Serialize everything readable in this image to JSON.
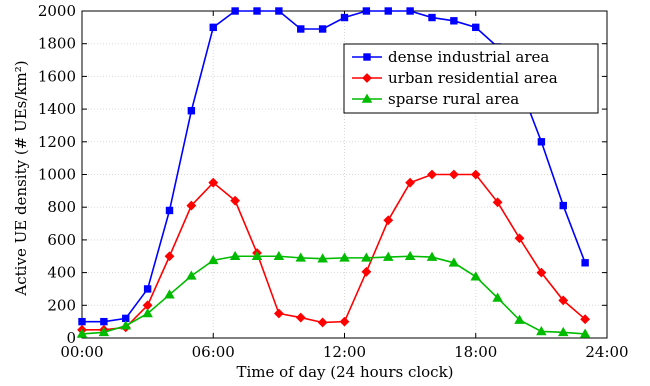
{
  "chart_data": {
    "type": "line",
    "xlabel": "Time of day (24 hours clock)",
    "ylabel": "Active UE density (# UEs/km²)",
    "xlim": [
      0,
      24
    ],
    "ylim": [
      0,
      2000
    ],
    "x_ticks": [
      0,
      6,
      12,
      18,
      24
    ],
    "x_tick_labels": [
      "00:00",
      "06:00",
      "12:00",
      "18:00",
      "24:00"
    ],
    "y_ticks": [
      0,
      200,
      400,
      600,
      800,
      1000,
      1200,
      1400,
      1600,
      1800,
      2000
    ],
    "y_tick_labels": [
      "0",
      "200",
      "400",
      "600",
      "800",
      "1000",
      "1200",
      "1400",
      "1600",
      "1800",
      "2000"
    ],
    "grid": true,
    "legend_position": "top-right",
    "x": [
      0,
      1,
      2,
      3,
      4,
      5,
      6,
      7,
      8,
      9,
      10,
      11,
      12,
      13,
      14,
      15,
      16,
      17,
      18,
      19,
      20,
      21,
      22,
      23
    ],
    "series": [
      {
        "name": "dense industrial area",
        "color": "#0000ff",
        "marker": "square",
        "values": [
          100,
          100,
          120,
          300,
          780,
          1390,
          1900,
          2000,
          2000,
          2000,
          1890,
          1890,
          1960,
          2000,
          2000,
          2000,
          1960,
          1940,
          1900,
          1780,
          1550,
          1200,
          810,
          460
        ]
      },
      {
        "name": "urban residential area",
        "color": "#ff0000",
        "marker": "diamond",
        "values": [
          50,
          50,
          65,
          200,
          500,
          810,
          950,
          840,
          520,
          150,
          125,
          95,
          100,
          405,
          720,
          950,
          1000,
          1000,
          1000,
          830,
          610,
          400,
          230,
          115
        ]
      },
      {
        "name": "sparse rural area",
        "color": "#00bb00",
        "marker": "triangle",
        "values": [
          25,
          35,
          75,
          150,
          265,
          380,
          475,
          500,
          500,
          500,
          490,
          485,
          490,
          490,
          495,
          500,
          495,
          460,
          375,
          245,
          110,
          40,
          35,
          25
        ]
      }
    ]
  }
}
